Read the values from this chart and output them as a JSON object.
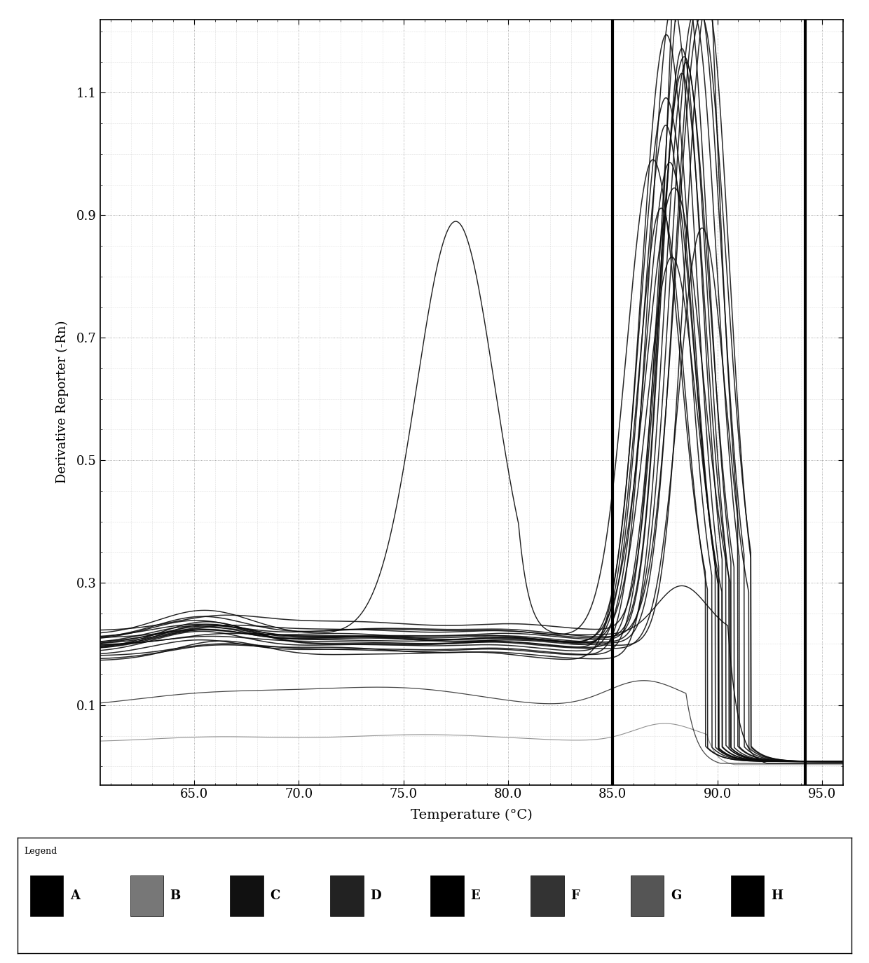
{
  "xlabel": "Temperature (°C)",
  "ylabel": "Derivative Reporter (-Rn)",
  "xlim": [
    60.5,
    96.0
  ],
  "ylim": [
    -0.03,
    1.22
  ],
  "yticks": [
    0.1,
    0.3,
    0.5,
    0.7,
    0.9,
    1.1
  ],
  "xticks": [
    65.0,
    70.0,
    75.0,
    80.0,
    85.0,
    90.0,
    95.0
  ],
  "vline1_x": 85.0,
  "vline2_x": 94.2,
  "legend_labels": [
    "A",
    "B",
    "C",
    "D",
    "E",
    "F",
    "G",
    "H"
  ],
  "background_color": "#ffffff",
  "grid_color": "#aaaaaa",
  "line_color": "#000000"
}
